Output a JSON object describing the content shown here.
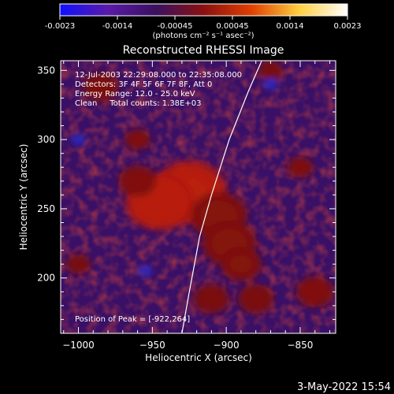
{
  "chart_data": {
    "type": "heatmap",
    "title": "Reconstructed RHESSI Image",
    "xlabel": "Heliocentric X (arcsec)",
    "ylabel": "Heliocentric Y (arcsec)",
    "xlim": [
      -1012,
      -826
    ],
    "ylim": [
      160,
      357
    ],
    "x_ticks": [
      -1000,
      -950,
      -900,
      -850
    ],
    "y_ticks": [
      200,
      250,
      300,
      350
    ],
    "colorbar": {
      "range": [
        -0.0023,
        0.0023
      ],
      "ticks": [
        "-0.0023",
        "-0.0014",
        "-0.00045",
        "0.00045",
        "0.0014",
        "0.0023"
      ],
      "unit_label": "(photons cm⁻² s⁻¹ asec⁻²)",
      "colors": [
        "#1010ff",
        "#5a1aa8",
        "#3a1060",
        "#8a1010",
        "#e04000",
        "#ffd040",
        "#ffffff"
      ]
    },
    "annotations": [
      "12-Jul-2003 22:29:08.000 to 22:35:08.000",
      "Detectors: 3F 4F 5F 6F 7F 8F, Att 0",
      "Energy Range: 12.0 - 25.0 keV",
      "Clean     Total counts: 1.38E+03"
    ],
    "peak_label": "Position of Peak = [-922,264]",
    "peak": [
      -922,
      264
    ],
    "limb_curve": [
      [
        -930,
        160
      ],
      [
        -925,
        190
      ],
      [
        -918,
        230
      ],
      [
        -910,
        260
      ],
      [
        -898,
        300
      ],
      [
        -885,
        335
      ],
      [
        -876,
        357
      ]
    ],
    "features": [
      {
        "x": -925,
        "y": 262,
        "intensity": 1.0
      },
      {
        "x": -945,
        "y": 255,
        "intensity": 0.85
      },
      {
        "x": -905,
        "y": 245,
        "intensity": 0.6
      },
      {
        "x": -898,
        "y": 225,
        "intensity": 0.55
      },
      {
        "x": -890,
        "y": 210,
        "intensity": 0.45
      },
      {
        "x": -960,
        "y": 270,
        "intensity": 0.35
      },
      {
        "x": -985,
        "y": 338,
        "intensity": 0.3
      },
      {
        "x": -960,
        "y": 300,
        "intensity": 0.25
      },
      {
        "x": -840,
        "y": 190,
        "intensity": 0.35
      },
      {
        "x": -880,
        "y": 185,
        "intensity": 0.3
      },
      {
        "x": -850,
        "y": 280,
        "intensity": 0.25
      },
      {
        "x": -910,
        "y": 185,
        "intensity": 0.3
      },
      {
        "x": -870,
        "y": 350,
        "intensity": 0.2
      },
      {
        "x": -1000,
        "y": 210,
        "intensity": 0.2
      }
    ],
    "dips": [
      {
        "x": -955,
        "y": 205,
        "intensity": -0.5
      },
      {
        "x": -870,
        "y": 340,
        "intensity": -0.4
      },
      {
        "x": -1000,
        "y": 300,
        "intensity": -0.3
      }
    ]
  },
  "footer": {
    "timestamp": "3-May-2022 15:54"
  }
}
